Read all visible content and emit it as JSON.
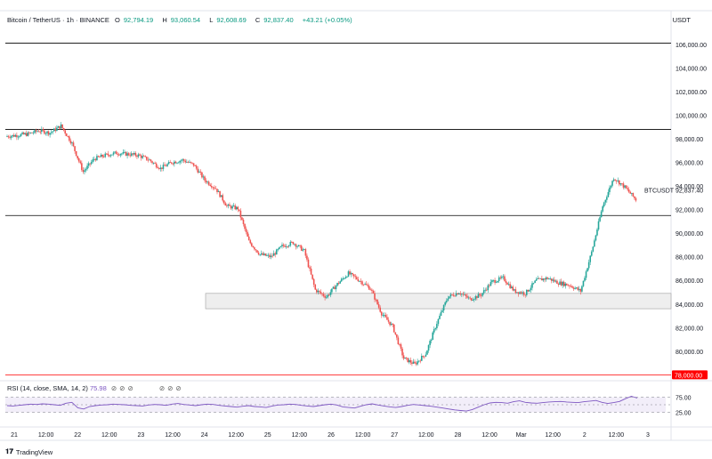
{
  "header": {
    "symbol": "Bitcoin / TetherUS · 1h · BINANCE",
    "open_label": "O",
    "open": "92,794.19",
    "high_label": "H",
    "high": "93,060.54",
    "low_label": "L",
    "low": "92,608.69",
    "close_label": "C",
    "close": "92,837.40",
    "change": "+43.21 (+0.05%)",
    "currency": "USDT"
  },
  "rsi": {
    "label": "RSI (14, close, SMA, 14, 2)",
    "value": "75.98",
    "icons": [
      "eye-off-icon",
      "eye-off-icon",
      "eye-off-icon",
      "eye-off-icon",
      "eye-off-icon",
      "eye-off-icon"
    ],
    "levels": [
      "75.00",
      "25.00"
    ]
  },
  "brand": {
    "name": "TradingView"
  },
  "colors": {
    "up": "#26a69a",
    "down": "#ef5350",
    "line": "#000000",
    "support": "#ff0000",
    "rsi": "#7e57c2"
  },
  "chart_data": {
    "type": "candlestick",
    "y_axis_labels": [
      "106,000.00",
      "104,000.00",
      "102,000.00",
      "100,000.00",
      "98,000.00",
      "96,000.00",
      "94,000.00",
      "92,000.00",
      "90,000.00",
      "88,000.00",
      "86,000.00",
      "84,000.00",
      "82,000.00",
      "80,000.00"
    ],
    "ylim": [
      77500,
      107500
    ],
    "x_axis_labels": [
      "21",
      "12:00",
      "22",
      "12:00",
      "23",
      "12:00",
      "24",
      "12:00",
      "25",
      "12:00",
      "26",
      "12:00",
      "27",
      "12:00",
      "28",
      "12:00",
      "Mar",
      "12:00",
      "2",
      "12:00",
      "3"
    ],
    "last_price_label": "92,837.40",
    "symbol_label": "BTCUSDT",
    "horizontal_lines": [
      106100,
      98800,
      91500
    ],
    "support_line": {
      "value": 78000,
      "label": "78,000.00"
    },
    "zone": {
      "from": 83600,
      "to": 84900
    },
    "price_path": [
      98200,
      98300,
      98400,
      98700,
      98500,
      99100,
      97600,
      95200,
      96300,
      96600,
      96800,
      96700,
      96600,
      96200,
      95500,
      96000,
      96200,
      95800,
      94500,
      93800,
      92300,
      92100,
      89300,
      88200,
      88000,
      88900,
      89200,
      88500,
      85200,
      84600,
      85700,
      86600,
      86000,
      85300,
      83200,
      82100,
      79400,
      78900,
      79800,
      82400,
      84600,
      85000,
      84400,
      84800,
      85900,
      86200,
      85100,
      84900,
      86000,
      86200,
      85800,
      85600,
      85100,
      88400,
      92300,
      94700,
      93900,
      92837
    ],
    "rsi_values": [
      47,
      46,
      48,
      50,
      52,
      51,
      53,
      52,
      50,
      48,
      55,
      58,
      40,
      36,
      44,
      47,
      49,
      50,
      52,
      51,
      50,
      48,
      47,
      46,
      49,
      51,
      50,
      48,
      52,
      54,
      51,
      49,
      47,
      50,
      52,
      51,
      48,
      46,
      44,
      42,
      45,
      47,
      44,
      43,
      41,
      46,
      49,
      50,
      52,
      51,
      48,
      46,
      44,
      47,
      50,
      52,
      49,
      43,
      41,
      39,
      45,
      50,
      53,
      49,
      46,
      43,
      41,
      44,
      48,
      51,
      49,
      47,
      45,
      42,
      39,
      36,
      33,
      31,
      29,
      34,
      42,
      50,
      56,
      58,
      57,
      55,
      60,
      63,
      58,
      56,
      55,
      57,
      59,
      60,
      61,
      59,
      58,
      57,
      60,
      62,
      64,
      58,
      54,
      57,
      61,
      70,
      78,
      72
    ]
  }
}
